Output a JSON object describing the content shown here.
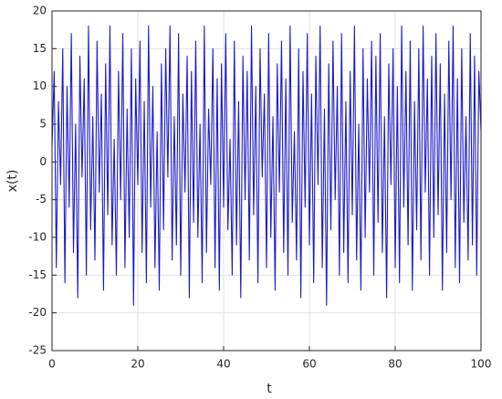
{
  "chart_data": {
    "type": "line",
    "xlabel": "t",
    "ylabel": "x(t)",
    "x": [
      0,
      0.5,
      1,
      1.5,
      2,
      2.5,
      3,
      3.5,
      4,
      4.5,
      5,
      5.5,
      6,
      6.5,
      7,
      7.5,
      8,
      8.5,
      9,
      9.5,
      10,
      10.5,
      11,
      11.5,
      12,
      12.5,
      13,
      13.5,
      14,
      14.5,
      15,
      15.5,
      16,
      16.5,
      17,
      17.5,
      18,
      18.5,
      19,
      19.5,
      20,
      20.5,
      21,
      21.5,
      22,
      22.5,
      23,
      23.5,
      24,
      24.5,
      25,
      25.5,
      26,
      26.5,
      27,
      27.5,
      28,
      28.5,
      29,
      29.5,
      30,
      30.5,
      31,
      31.5,
      32,
      32.5,
      33,
      33.5,
      34,
      34.5,
      35,
      35.5,
      36,
      36.5,
      37,
      37.5,
      38,
      38.5,
      39,
      39.5,
      40,
      40.5,
      41,
      41.5,
      42,
      42.5,
      43,
      43.5,
      44,
      44.5,
      45,
      45.5,
      46,
      46.5,
      47,
      47.5,
      48,
      48.5,
      49,
      49.5,
      50,
      50.5,
      51,
      51.5,
      52,
      52.5,
      53,
      53.5,
      54,
      54.5,
      55,
      55.5,
      56,
      56.5,
      57,
      57.5,
      58,
      58.5,
      59,
      59.5,
      60,
      60.5,
      61,
      61.5,
      62,
      62.5,
      63,
      63.5,
      64,
      64.5,
      65,
      65.5,
      66,
      66.5,
      67,
      67.5,
      68,
      68.5,
      69,
      69.5,
      70,
      70.5,
      71,
      71.5,
      72,
      72.5,
      73,
      73.5,
      74,
      74.5,
      75,
      75.5,
      76,
      76.5,
      77,
      77.5,
      78,
      78.5,
      79,
      79.5,
      80,
      80.5,
      81,
      81.5,
      82,
      82.5,
      83,
      83.5,
      84,
      84.5,
      85,
      85.5,
      86,
      86.5,
      87,
      87.5,
      88,
      88.5,
      89,
      89.5,
      90,
      90.5,
      91,
      91.5,
      92,
      92.5,
      93,
      93.5,
      94,
      94.5,
      95,
      95.5,
      96,
      96.5,
      97,
      97.5,
      98,
      98.5,
      99,
      99.5,
      100
    ],
    "series": [
      {
        "color": "#1a1acc",
        "values": [
          2,
          12,
          -14,
          8,
          -3,
          15,
          -16,
          10,
          -6,
          17,
          -12,
          5,
          -18,
          14,
          -2,
          11,
          -15,
          18,
          -9,
          6,
          -13,
          16,
          -4,
          9,
          -17,
          13,
          -7,
          18,
          -11,
          3,
          -15,
          12,
          -5,
          17,
          -14,
          7,
          -10,
          15,
          -19,
          11,
          -3,
          16,
          -12,
          8,
          -16,
          18,
          -6,
          10,
          -14,
          4,
          -17,
          13,
          -9,
          15,
          -2,
          18,
          -13,
          6,
          -11,
          17,
          -15,
          9,
          -4,
          14,
          -18,
          12,
          -8,
          16,
          -10,
          5,
          -16,
          18,
          -12,
          7,
          -3,
          15,
          -14,
          11,
          -17,
          13,
          -6,
          17,
          -9,
          3,
          -15,
          16,
          -11,
          8,
          -18,
          14,
          -5,
          12,
          -13,
          18,
          -7,
          10,
          -16,
          15,
          -2,
          9,
          -14,
          17,
          -10,
          6,
          -17,
          13,
          -4,
          16,
          -12,
          11,
          -15,
          18,
          -8,
          4,
          -13,
          15,
          -18,
          12,
          -6,
          17,
          -11,
          9,
          -16,
          14,
          -3,
          18,
          -14,
          7,
          -19,
          13,
          -9,
          16,
          -5,
          10,
          -15,
          17,
          -12,
          8,
          -16,
          12,
          -7,
          18,
          -13,
          5,
          -17,
          15,
          -10,
          11,
          -4,
          16,
          -15,
          14,
          -8,
          17,
          -12,
          6,
          -18,
          13,
          -3,
          15,
          -14,
          10,
          -16,
          18,
          -6,
          12,
          -11,
          16,
          -17,
          8,
          -9,
          15,
          -13,
          18,
          -4,
          11,
          -15,
          14,
          -10,
          17,
          -7,
          13,
          -17,
          9,
          -12,
          16,
          -5,
          18,
          -14,
          11,
          -16,
          15,
          -8,
          6,
          -13,
          17,
          -11,
          14,
          -15,
          12,
          4
        ]
      }
    ],
    "xlim": [
      0,
      100
    ],
    "xticks": [
      0,
      20,
      40,
      60,
      80,
      100
    ],
    "ylim": [
      -25,
      20
    ],
    "yticks": [
      -25,
      -20,
      -15,
      -10,
      -5,
      0,
      5,
      10,
      15,
      20
    ],
    "grid": true
  }
}
